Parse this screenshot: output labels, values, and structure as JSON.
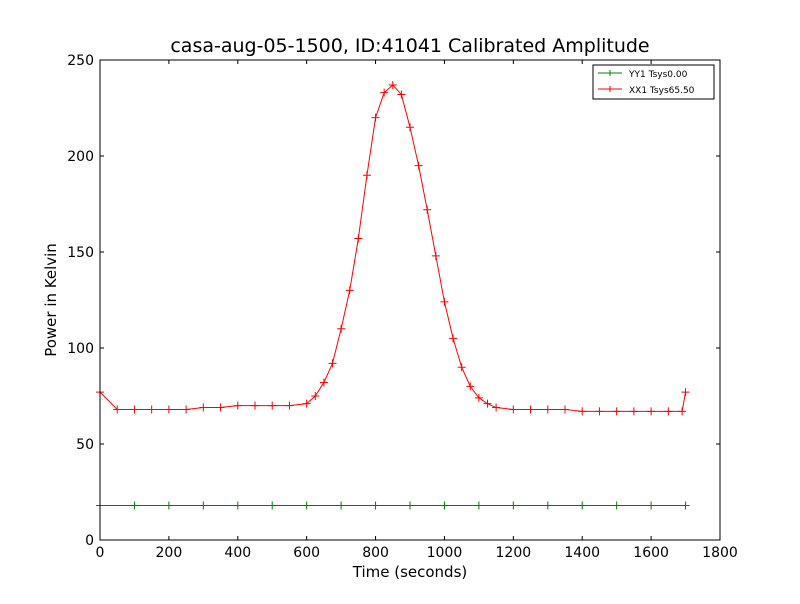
{
  "chart_data": {
    "type": "line",
    "title": "casa-aug-05-1500, ID:41041 Calibrated Amplitude",
    "xlabel": "Time (seconds)",
    "ylabel": "Power in Kelvin",
    "xlim": [
      0,
      1800
    ],
    "ylim": [
      0,
      250
    ],
    "x_ticks": [
      0,
      200,
      400,
      600,
      800,
      1000,
      1200,
      1400,
      1600,
      1800
    ],
    "y_ticks": [
      0,
      50,
      100,
      150,
      200,
      250
    ],
    "x_tick_labels": [
      "0",
      "200",
      "400",
      "600",
      "800",
      "1000",
      "1200",
      "1400",
      "1600",
      "1800"
    ],
    "y_tick_labels": [
      "0",
      "50",
      "100",
      "150",
      "200",
      "250"
    ],
    "grid": false,
    "legend_position": "top-right",
    "marker": "plus",
    "series": [
      {
        "name": "YY1 Tsys0.00",
        "color": "#008000",
        "x": [
          0,
          100,
          200,
          300,
          400,
          500,
          600,
          700,
          800,
          900,
          1000,
          1100,
          1200,
          1300,
          1400,
          1500,
          1600,
          1700
        ],
        "y": [
          18,
          18,
          18,
          18,
          18,
          18,
          18,
          18,
          18,
          18,
          18,
          18,
          18,
          18,
          18,
          18,
          18,
          18
        ]
      },
      {
        "name": "XX1 Tsys65.50",
        "color": "#ff0000",
        "x": [
          0,
          50,
          100,
          150,
          200,
          250,
          300,
          350,
          400,
          450,
          500,
          550,
          600,
          625,
          650,
          675,
          700,
          725,
          750,
          775,
          800,
          825,
          850,
          875,
          900,
          925,
          950,
          975,
          1000,
          1025,
          1050,
          1075,
          1100,
          1125,
          1150,
          1200,
          1250,
          1300,
          1350,
          1400,
          1450,
          1500,
          1550,
          1600,
          1650,
          1690,
          1700
        ],
        "y": [
          77,
          68,
          68,
          68,
          68,
          68,
          69,
          69,
          70,
          70,
          70,
          70,
          71,
          75,
          82,
          92,
          110,
          130,
          157,
          190,
          220,
          233,
          237,
          232,
          215,
          195,
          172,
          148,
          124,
          105,
          90,
          80,
          74,
          71,
          69,
          68,
          68,
          68,
          68,
          67,
          67,
          67,
          67,
          67,
          67,
          67,
          77
        ]
      }
    ]
  }
}
